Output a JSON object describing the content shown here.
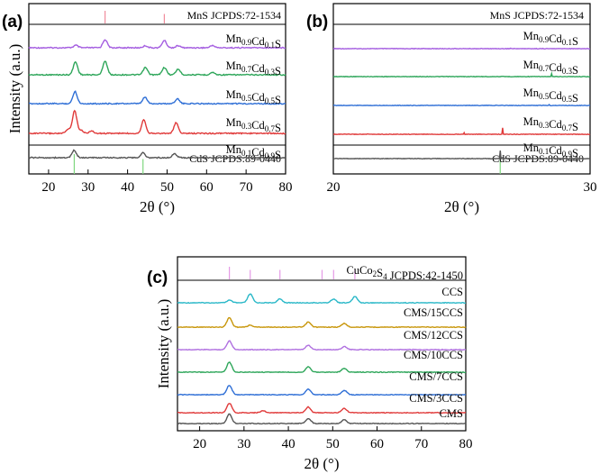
{
  "chart_data": [
    {
      "type": "line",
      "panel": "(a)",
      "xlabel": "2θ (°)",
      "ylabel": "Intensity (a.u.)",
      "xlim": [
        15,
        80
      ],
      "xticks": [
        20,
        30,
        40,
        50,
        60,
        70,
        80
      ],
      "references": [
        {
          "name": "MnS JCPDS:72-1534",
          "color": "#f08c9c",
          "peaks": [
            34.3,
            49.3
          ]
        },
        {
          "name": "CdS JCPDS:89-0440",
          "color": "#7fd77f",
          "peaks": [
            26.5,
            43.9
          ]
        }
      ],
      "series": [
        {
          "name": "Mn0.9Cd0.1S",
          "label_main": "Mn",
          "sub1": "0.9",
          "mid": "Cd",
          "sub2": "0.1",
          "end": "S",
          "color": "#a45de0",
          "peaks": [
            [
              34.3,
              1.0
            ],
            [
              49.3,
              0.9
            ],
            [
              26.9,
              0.3
            ],
            [
              44.5,
              0.25
            ],
            [
              52.8,
              0.25
            ],
            [
              61.5,
              0.3
            ]
          ]
        },
        {
          "name": "Mn0.7Cd0.3S",
          "label_main": "Mn",
          "sub1": "0.7",
          "mid": "Cd",
          "sub2": "0.3",
          "end": "S",
          "color": "#2ea65a",
          "peaks": [
            [
              26.8,
              1.6
            ],
            [
              34.3,
              1.7
            ],
            [
              44.5,
              0.9
            ],
            [
              49.3,
              0.9
            ],
            [
              52.8,
              0.7
            ],
            [
              61.5,
              0.3
            ]
          ]
        },
        {
          "name": "Mn0.5Cd0.5S",
          "label_main": "Mn",
          "sub1": "0.5",
          "mid": "Cd",
          "sub2": "0.5",
          "end": "S",
          "color": "#2f6fd6",
          "peaks": [
            [
              26.7,
              1.5
            ],
            [
              44.4,
              0.8
            ],
            [
              52.6,
              0.6
            ]
          ]
        },
        {
          "name": "Mn0.3Cd0.7S",
          "label_main": "Mn",
          "sub1": "0.3",
          "mid": "Cd",
          "sub2": "0.7",
          "end": "S",
          "color": "#e03a3a",
          "peaks": [
            [
              26.6,
              2.8
            ],
            [
              25.0,
              0.5
            ],
            [
              28.2,
              0.4
            ],
            [
              30.8,
              0.3
            ],
            [
              44.1,
              1.7
            ],
            [
              52.3,
              1.3
            ]
          ]
        },
        {
          "name": "Mn0.1Cd0.9S",
          "label_main": "Mn",
          "sub1": "0.1",
          "mid": "Cd",
          "sub2": "0.9",
          "end": "S",
          "color": "#555555",
          "peaks": [
            [
              26.5,
              0.9
            ],
            [
              43.9,
              0.6
            ],
            [
              51.9,
              0.5
            ]
          ]
        }
      ]
    },
    {
      "type": "line",
      "panel": "(b)",
      "xlabel": "2θ (°)",
      "ylabel": "",
      "xlim": [
        20,
        30
      ],
      "xticks": [
        20,
        30
      ],
      "references": [
        {
          "name": "MnS JCPDS:72-1534",
          "color": "#f08c9c",
          "peaks": []
        },
        {
          "name": "CdS JCPDS:89-0440",
          "color": "#7fd77f",
          "peaks": [
            26.5
          ]
        }
      ],
      "series": [
        {
          "name": "Mn0.9Cd0.1S",
          "label_main": "Mn",
          "sub1": "0.9",
          "mid": "Cd",
          "sub2": "0.1",
          "end": "S",
          "color": "#a45de0",
          "peaks": [
            [
              26.9,
              0.15
            ]
          ]
        },
        {
          "name": "Mn0.7Cd0.3S",
          "label_main": "Mn",
          "sub1": "0.7",
          "mid": "Cd",
          "sub2": "0.3",
          "end": "S",
          "color": "#2ea65a",
          "peaks": [
            [
              26.8,
              1.0
            ],
            [
              25.2,
              0.25
            ],
            [
              28.5,
              0.2
            ]
          ]
        },
        {
          "name": "Mn0.5Cd0.5S",
          "label_main": "Mn",
          "sub1": "0.5",
          "mid": "Cd",
          "sub2": "0.5",
          "end": "S",
          "color": "#2f6fd6",
          "peaks": [
            [
              26.7,
              1.0
            ],
            [
              25.2,
              0.25
            ],
            [
              28.4,
              0.2
            ]
          ]
        },
        {
          "name": "Mn0.3Cd0.7S",
          "label_main": "Mn",
          "sub1": "0.3",
          "mid": "Cd",
          "sub2": "0.7",
          "end": "S",
          "color": "#e03a3a",
          "peaks": [
            [
              26.6,
              1.7
            ],
            [
              25.1,
              0.45
            ],
            [
              28.2,
              0.3
            ]
          ]
        },
        {
          "name": "Mn0.1Cd0.9S",
          "label_main": "Mn",
          "sub1": "0.1",
          "mid": "Cd",
          "sub2": "0.9",
          "end": "S",
          "color": "#555555",
          "peaks": [
            [
              26.5,
              0.6
            ]
          ]
        }
      ]
    },
    {
      "type": "line",
      "panel": "(c)",
      "xlabel": "2θ (°)",
      "ylabel": "Intensity (a.u.)",
      "xlim": [
        15,
        80
      ],
      "xticks": [
        20,
        30,
        40,
        50,
        60,
        70,
        80
      ],
      "references": [
        {
          "name": "CuCo2S4 JCPDS:42-1450",
          "label_main": "CuCo",
          "sub1": "2",
          "mid": "S",
          "sub2": "4",
          "end": " JCPDS:42-1450",
          "color": "#e59ae6",
          "peaks": [
            26.7,
            31.4,
            38.1,
            47.6,
            50.2,
            55.0
          ]
        }
      ],
      "series": [
        {
          "name": "CCS",
          "color": "#2ab8c8",
          "peaks": [
            [
              31.4,
              1.4
            ],
            [
              38.1,
              0.6
            ],
            [
              26.7,
              0.4
            ],
            [
              50.2,
              0.6
            ],
            [
              55.0,
              1.0
            ]
          ]
        },
        {
          "name": "CMS/15CCS",
          "color": "#c8960a",
          "peaks": [
            [
              26.7,
              1.5
            ],
            [
              44.5,
              0.8
            ],
            [
              52.6,
              0.6
            ],
            [
              31.4,
              0.3
            ]
          ]
        },
        {
          "name": "CMS/12CCS",
          "color": "#b070e0",
          "peaks": [
            [
              26.7,
              1.4
            ],
            [
              44.5,
              0.7
            ],
            [
              52.6,
              0.5
            ]
          ]
        },
        {
          "name": "CMS/10CCS",
          "color": "#2ea65a",
          "peaks": [
            [
              26.7,
              1.6
            ],
            [
              44.5,
              0.9
            ],
            [
              52.6,
              0.6
            ]
          ]
        },
        {
          "name": "CMS/7CCS",
          "color": "#2f6fd6",
          "peaks": [
            [
              26.7,
              1.5
            ],
            [
              44.5,
              0.9
            ],
            [
              52.6,
              0.7
            ]
          ]
        },
        {
          "name": "CMS/3CCS",
          "color": "#e03a3a",
          "peaks": [
            [
              26.7,
              1.5
            ],
            [
              44.5,
              0.9
            ],
            [
              52.6,
              0.7
            ],
            [
              34.3,
              0.3
            ]
          ]
        },
        {
          "name": "CMS",
          "color": "#555555",
          "peaks": [
            [
              26.7,
              1.5
            ],
            [
              44.5,
              0.8
            ],
            [
              52.6,
              0.6
            ]
          ]
        }
      ]
    }
  ]
}
